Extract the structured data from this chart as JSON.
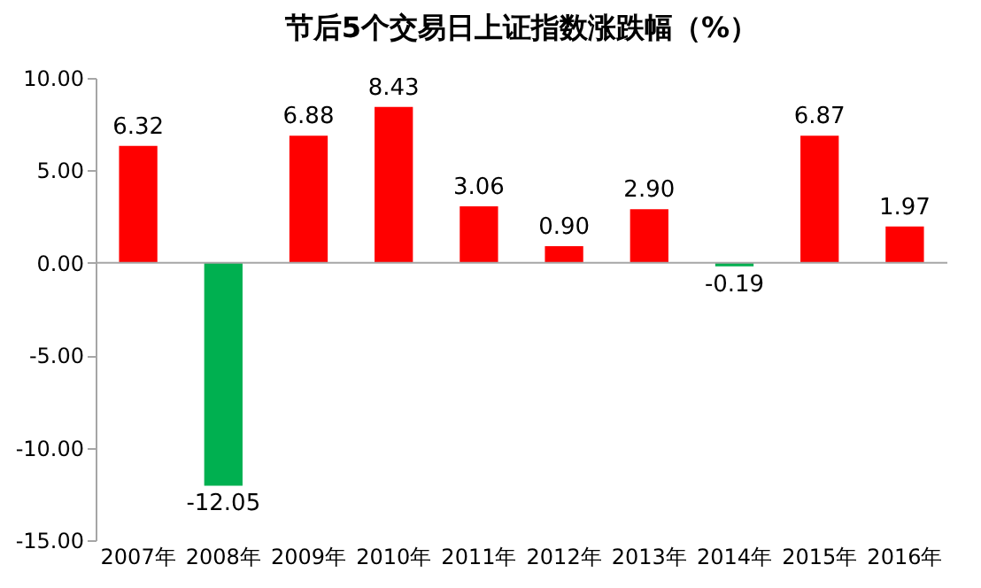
{
  "chart_data": {
    "type": "bar",
    "title": "节后5个交易日上证指数涨跌幅（%）",
    "categories": [
      "2007年",
      "2008年",
      "2009年",
      "2010年",
      "2011年",
      "2012年",
      "2013年",
      "2014年",
      "2015年",
      "2016年"
    ],
    "values": [
      6.32,
      -12.05,
      6.88,
      8.43,
      3.06,
      0.9,
      2.9,
      -0.19,
      6.87,
      1.97
    ],
    "value_labels": [
      "6.32",
      "-12.05",
      "6.88",
      "8.43",
      "3.06",
      "0.90",
      "2.90",
      "-0.19",
      "6.87",
      "1.97"
    ],
    "colors": [
      "#ff0000",
      "#00b050",
      "#ff0000",
      "#ff0000",
      "#ff0000",
      "#ff0000",
      "#ff0000",
      "#00b050",
      "#ff0000",
      "#ff0000"
    ],
    "ylim": [
      -15,
      10
    ],
    "yticks": [
      {
        "value": -15,
        "label": "-15.00"
      },
      {
        "value": -10,
        "label": "-10.00"
      },
      {
        "value": -5,
        "label": "-5.00"
      },
      {
        "value": 0,
        "label": "0.00"
      },
      {
        "value": 5,
        "label": "5.00"
      },
      {
        "value": 10,
        "label": "10.00"
      }
    ],
    "ref_lines": [
      {
        "axis": "y",
        "value": 0,
        "color": "#a6a6a6"
      }
    ],
    "grid": false
  }
}
